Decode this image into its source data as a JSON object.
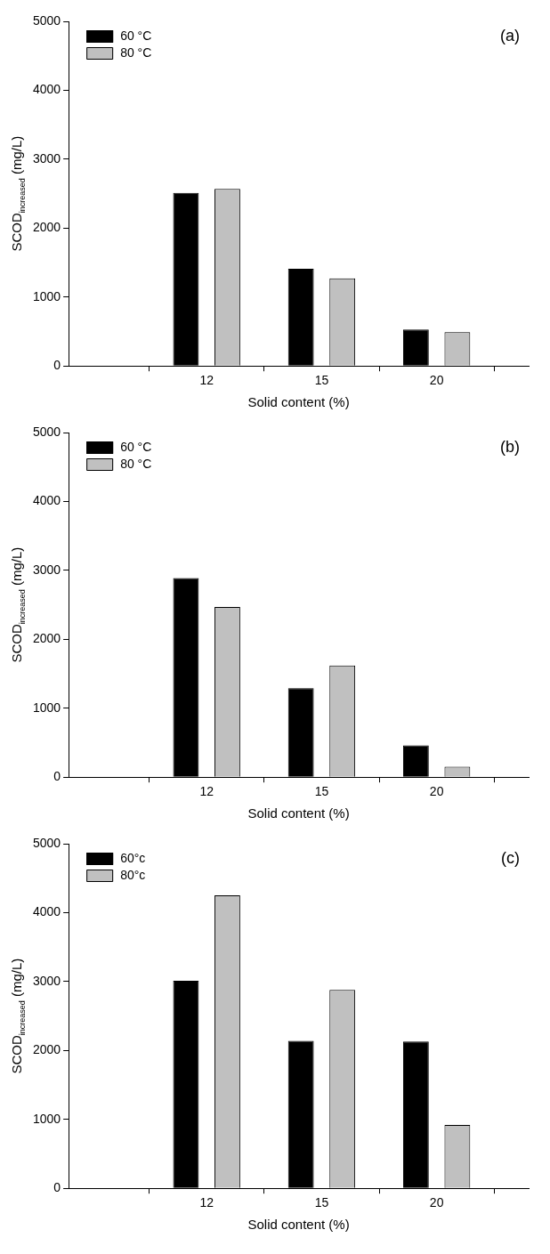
{
  "chart_data": [
    {
      "type": "bar",
      "categories": [
        "12",
        "15",
        "20"
      ],
      "xlabel": "Solid content (%)",
      "ylabel": "SCOD$_{increased}$ (mg/L)",
      "ylim": [
        0,
        5000
      ],
      "yticks": [
        0,
        1000,
        2000,
        3000,
        4000,
        5000
      ],
      "grid": false,
      "legend": "top left",
      "annotations": [
        "(a)"
      ],
      "series": [
        {
          "name": "60 °C",
          "color": "#000000",
          "values": [
            2510,
            1410,
            530
          ]
        },
        {
          "name": "80 °C",
          "color": "#c0c0c0",
          "values": [
            2570,
            1270,
            490
          ]
        }
      ]
    },
    {
      "type": "bar",
      "categories": [
        "12",
        "15",
        "20"
      ],
      "xlabel": "Solid content (%)",
      "ylabel": "SCOD$_{increased}$ (mg/L)",
      "ylim": [
        0,
        5000
      ],
      "yticks": [
        0,
        1000,
        2000,
        3000,
        4000,
        5000
      ],
      "grid": false,
      "legend": "top left",
      "annotations": [
        "(b)"
      ],
      "series": [
        {
          "name": "60 °C",
          "color": "#000000",
          "values": [
            2890,
            1290,
            460
          ]
        },
        {
          "name": "80 °C",
          "color": "#c0c0c0",
          "values": [
            2470,
            1620,
            150
          ]
        }
      ]
    },
    {
      "type": "bar",
      "categories": [
        "12",
        "15",
        "20"
      ],
      "xlabel": "Solid content (%)",
      "ylabel": "SCOD$_{increased}$ (mg/L)",
      "ylim": [
        0,
        5000
      ],
      "yticks": [
        0,
        1000,
        2000,
        3000,
        4000,
        5000
      ],
      "grid": false,
      "legend": "top left",
      "annotations": [
        "(c)"
      ],
      "series": [
        {
          "name": "60°c",
          "color": "#000000",
          "values": [
            3010,
            2140,
            2130
          ]
        },
        {
          "name": "80°c",
          "color": "#c0c0c0",
          "values": [
            4250,
            2880,
            920
          ]
        }
      ]
    }
  ]
}
